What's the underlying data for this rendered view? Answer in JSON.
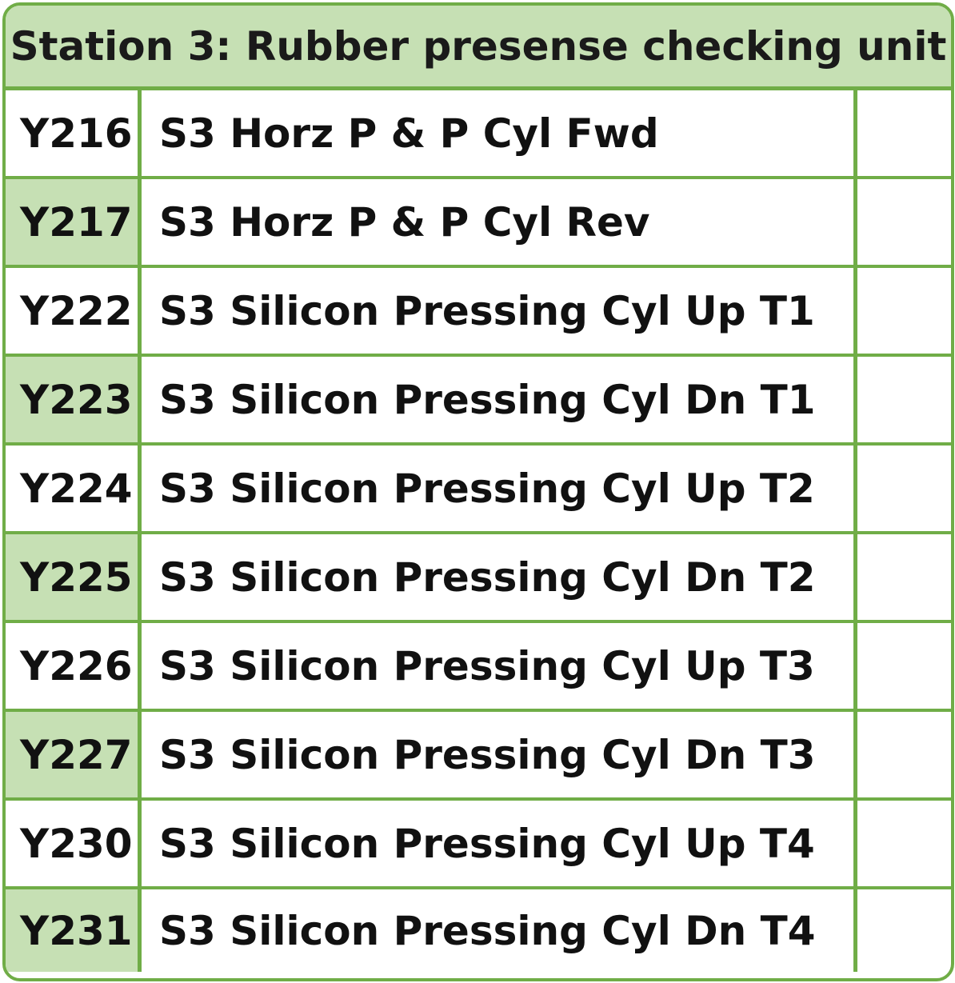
{
  "title": "Station 3: Rubber presense checking unit",
  "colors": {
    "accent": "#70ad47",
    "shade": "#c6e0b4"
  },
  "rows": [
    {
      "address": "Y216",
      "description": "S3 Horz P & P Cyl Fwd",
      "status": ""
    },
    {
      "address": "Y217",
      "description": "S3 Horz P & P Cyl Rev",
      "status": ""
    },
    {
      "address": "Y222",
      "description": "S3 Silicon Pressing Cyl Up T1",
      "status": ""
    },
    {
      "address": "Y223",
      "description": "S3 Silicon Pressing Cyl Dn T1",
      "status": ""
    },
    {
      "address": "Y224",
      "description": "S3 Silicon Pressing Cyl Up T2",
      "status": ""
    },
    {
      "address": "Y225",
      "description": "S3 Silicon Pressing Cyl Dn T2",
      "status": ""
    },
    {
      "address": "Y226",
      "description": "S3 Silicon Pressing Cyl Up T3",
      "status": ""
    },
    {
      "address": "Y227",
      "description": "S3 Silicon Pressing Cyl Dn T3",
      "status": ""
    },
    {
      "address": "Y230",
      "description": "S3 Silicon Pressing Cyl Up T4",
      "status": ""
    },
    {
      "address": "Y231",
      "description": "S3 Silicon Pressing Cyl Dn T4",
      "status": ""
    }
  ]
}
